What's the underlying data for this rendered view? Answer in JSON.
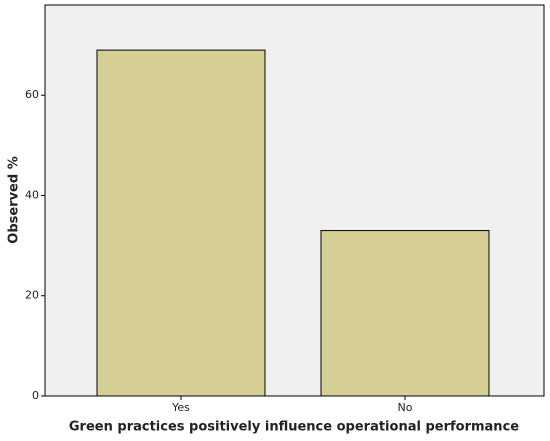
{
  "chart_data": {
    "type": "bar",
    "x_label": "Green practices positively influence operational performance",
    "y_label": "Observed %",
    "categories": [
      "Yes",
      "No"
    ],
    "values": [
      69,
      33
    ],
    "color": "#d5cf95",
    "ylim": [
      0,
      78
    ],
    "yticks": [
      0,
      20,
      40,
      60
    ],
    "grid": false
  }
}
